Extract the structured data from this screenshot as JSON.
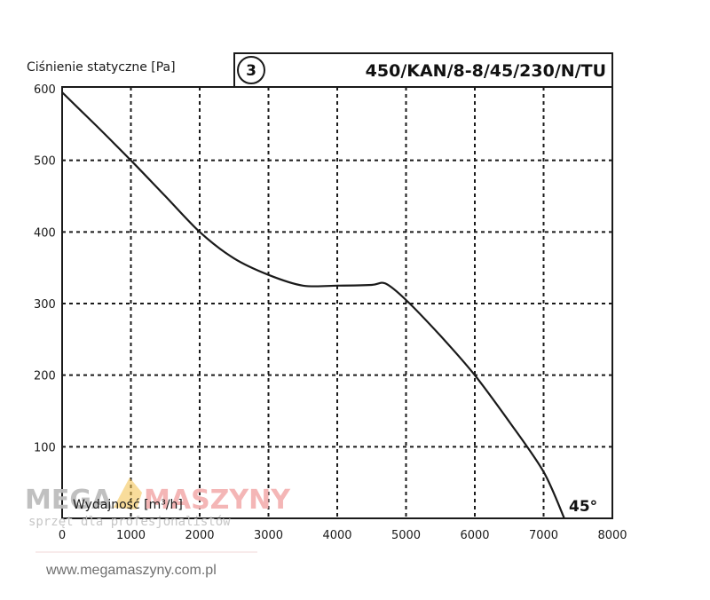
{
  "chart_data": {
    "type": "line",
    "title": "450/KAN/8-8/45/230/N/TU",
    "badge": "3",
    "ylabel": "Ciśnienie statyczne [Pa]",
    "xlabel": "Wydajność [m³/h]",
    "annotation": "45°",
    "xlim": [
      0,
      8000
    ],
    "ylim": [
      0,
      600
    ],
    "x_ticks": [
      "0",
      "1000",
      "2000",
      "3000",
      "4000",
      "5000",
      "6000",
      "7000",
      "8000"
    ],
    "y_ticks": [
      "100",
      "200",
      "300",
      "400",
      "500",
      "600"
    ],
    "grid": true,
    "series": [
      {
        "x": [
          0,
          500,
          1000,
          1500,
          2000,
          2500,
          3000,
          3500,
          4000,
          4500,
          4700,
          5000,
          5500,
          6000,
          6500,
          7000,
          7300
        ],
        "y": [
          595,
          548,
          500,
          450,
          400,
          363,
          340,
          325,
          325,
          326,
          328,
          305,
          255,
          200,
          135,
          65,
          0
        ]
      }
    ]
  },
  "watermark": {
    "brand_left": "MEGA",
    "brand_right": "MASZYNY",
    "tagline": "sprzęt dla profesjonalistów",
    "url": "www.megamaszyny.com.pl"
  },
  "colors": {
    "curve": "#1a1a1a",
    "grid": "#1a1a1a",
    "watermark_gray": "#bdbdbd",
    "watermark_red": "#f4b3b3",
    "watermark_gold": "#f2c14e"
  }
}
